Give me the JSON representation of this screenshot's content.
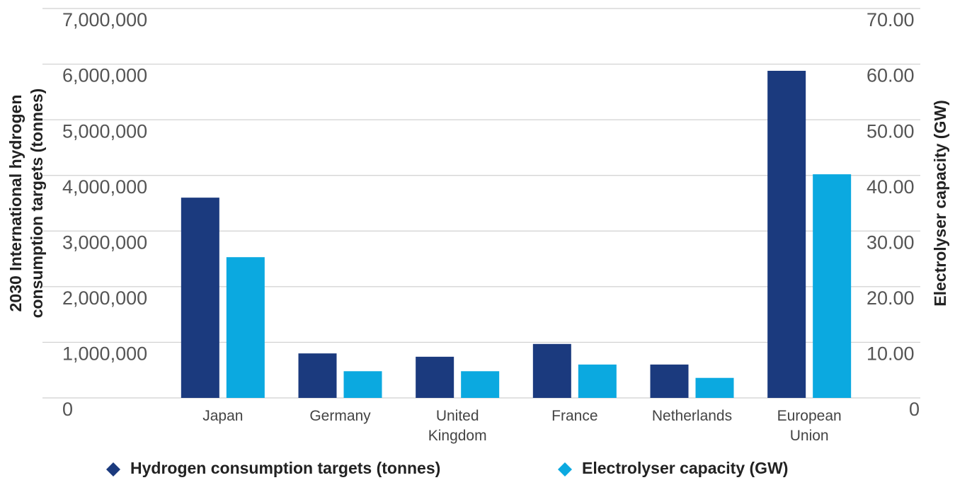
{
  "chart_data": {
    "type": "bar",
    "categories": [
      "Japan",
      "Germany",
      "United Kingdom",
      "France",
      "Netherlands",
      "European Union"
    ],
    "series": [
      {
        "name": "Hydrogen consumption targets (tonnes)",
        "color": "#1b3a7e",
        "values": [
          3600000,
          800000,
          740000,
          970000,
          600000,
          5880000
        ]
      },
      {
        "name": "Electrolyser capacity (GW)",
        "color": "#0ba9e0",
        "axis": "y2",
        "values": [
          25.3,
          4.8,
          4.8,
          6,
          3.6,
          40.2
        ]
      }
    ],
    "ylabel": "2030 International hydrogen consumption targets (tonnes)",
    "y2label": "Electrolyser capacity (GW)",
    "ylim": [
      0,
      7000000
    ],
    "yticks": [
      0,
      {
        "value": 1000000,
        "label": "1,000,000"
      },
      {
        "value": 2000000,
        "label": "2,000,000"
      },
      {
        "value": 3000000,
        "label": "3,000,000"
      },
      {
        "value": 4000000,
        "label": "4,000,000"
      },
      {
        "value": 5000000,
        "label": "5,000,000"
      },
      {
        "value": 6000000,
        "label": "6,000,000"
      },
      {
        "value": 7000000,
        "label": "7,000,000"
      }
    ],
    "y2lim": [
      0,
      70
    ],
    "y2ticks": [
      0,
      {
        "value": 10,
        "label": "10.00"
      },
      {
        "value": 20,
        "label": "20.00"
      },
      {
        "value": 30,
        "label": "30.00"
      },
      {
        "value": 40,
        "label": "40.00"
      },
      {
        "value": 50,
        "label": "50.00"
      },
      {
        "value": 60,
        "label": "60.00"
      },
      {
        "value": 70,
        "label": "70.00"
      }
    ],
    "grid": true,
    "legend": "bottom"
  }
}
